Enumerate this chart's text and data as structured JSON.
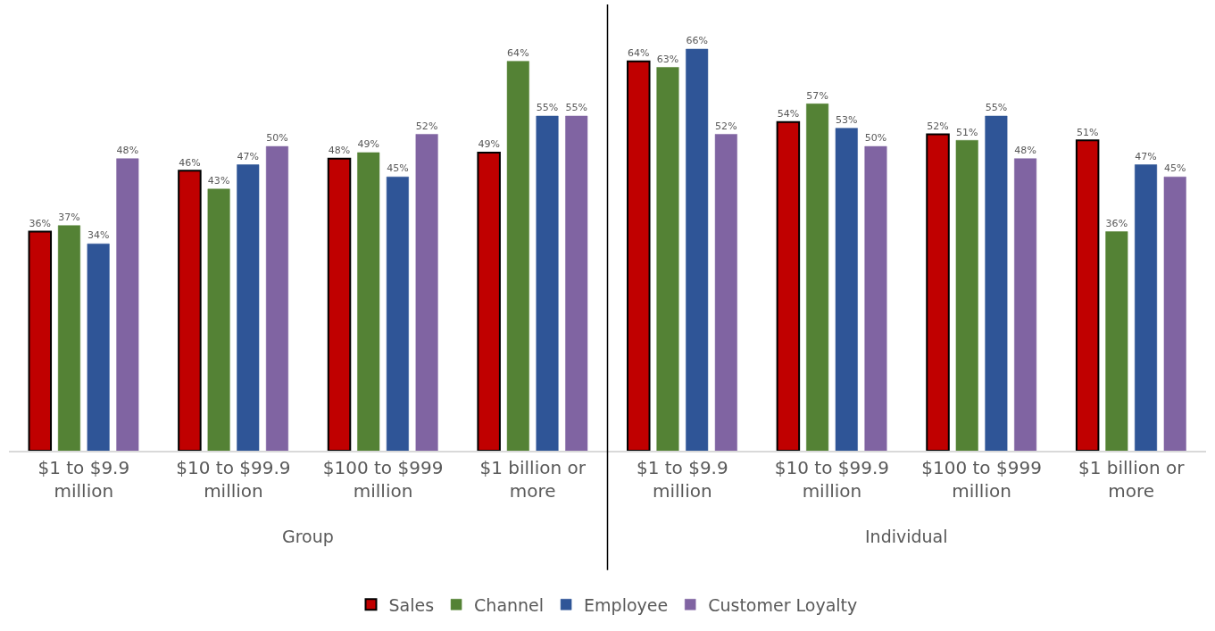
{
  "chart_data": {
    "type": "bar",
    "categories": [
      "$1 to $9.9 million",
      "$10 to $99.9 million",
      "$100 to $999 million",
      "$1 billion or more",
      "$1 to $9.9 million",
      "$10 to $99.9 million",
      "$100 to $999 million",
      "$1 billion or more"
    ],
    "series": [
      {
        "name": "Sales",
        "color": "#c00000",
        "values": [
          36,
          46,
          48,
          49,
          64,
          54,
          52,
          51
        ],
        "value_labels": [
          "36%",
          "46%",
          "48%",
          "49%",
          "64%",
          "54%",
          "52%",
          "51%"
        ]
      },
      {
        "name": "Channel",
        "color": "#548235",
        "values": [
          37,
          43,
          49,
          64,
          63,
          57,
          51,
          36
        ],
        "value_labels": [
          "37%",
          "43%",
          "49%",
          "64%",
          "63%",
          "57%",
          "51%",
          "36%"
        ]
      },
      {
        "name": "Employee",
        "color": "#2f5597",
        "values": [
          34,
          47,
          45,
          55,
          66,
          53,
          55,
          47
        ],
        "value_labels": [
          "34%",
          "47%",
          "45%",
          "55%",
          "66%",
          "53%",
          "55%",
          "47%"
        ]
      },
      {
        "name": "Customer Loyalty",
        "color": "#8064a2",
        "values": [
          48,
          50,
          52,
          55,
          52,
          50,
          48,
          45
        ],
        "value_labels": [
          "48%",
          "50%",
          "52%",
          "55%",
          "52%",
          "50%",
          "48%",
          "45%"
        ]
      }
    ],
    "annotations": [
      "Group",
      "Individual"
    ],
    "legend": "bottom"
  }
}
